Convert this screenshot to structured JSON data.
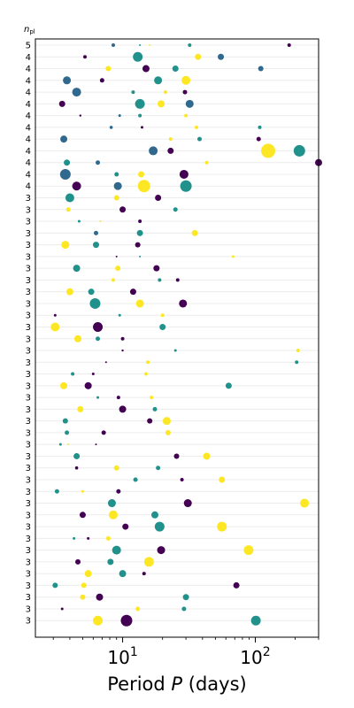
{
  "chart_data": {
    "type": "scatter",
    "title": "",
    "xlabel_prefix": "Period ",
    "xlabel_var": "P",
    "xlabel_suffix": " (days)",
    "ylabel_var": "n",
    "ylabel_sub": "pl",
    "x_scale": "log",
    "xlim": [
      2.2,
      300
    ],
    "x_ticks": [
      {
        "value": 10,
        "base": "10",
        "exp": "1"
      },
      {
        "value": 100,
        "base": "10",
        "exp": "2"
      }
    ],
    "grid": "horizontal rows",
    "colors": {
      "purple": "#440154",
      "blue": "#31688e",
      "teal": "#21918c",
      "yellow": "#fde725"
    },
    "rows": [
      {
        "n_pl": 5,
        "planets": [
          {
            "P": 8.5,
            "r": 2,
            "c": "blue"
          },
          {
            "P": 13.5,
            "r": 1,
            "c": "teal"
          },
          {
            "P": 16,
            "r": 1,
            "c": "yellow"
          },
          {
            "P": 32,
            "r": 2,
            "c": "teal"
          },
          {
            "P": 180,
            "r": 2,
            "c": "purple"
          }
        ]
      },
      {
        "n_pl": 4,
        "planets": [
          {
            "P": 5.2,
            "r": 2,
            "c": "purple"
          },
          {
            "P": 13,
            "r": 5.5,
            "c": "teal"
          },
          {
            "P": 37,
            "r": 3.5,
            "c": "yellow"
          },
          {
            "P": 55,
            "r": 3.5,
            "c": "blue"
          }
        ]
      },
      {
        "n_pl": 4,
        "planets": [
          {
            "P": 7.8,
            "r": 3,
            "c": "yellow"
          },
          {
            "P": 15,
            "r": 4,
            "c": "purple"
          },
          {
            "P": 25,
            "r": 3.5,
            "c": "teal"
          },
          {
            "P": 110,
            "r": 3,
            "c": "blue"
          }
        ]
      },
      {
        "n_pl": 4,
        "planets": [
          {
            "P": 3.8,
            "r": 4.5,
            "c": "blue"
          },
          {
            "P": 7,
            "r": 2.5,
            "c": "purple"
          },
          {
            "P": 18.5,
            "r": 4.5,
            "c": "teal"
          },
          {
            "P": 30,
            "r": 5,
            "c": "yellow"
          }
        ]
      },
      {
        "n_pl": 4,
        "planets": [
          {
            "P": 4.5,
            "r": 5,
            "c": "blue"
          },
          {
            "P": 12,
            "r": 2,
            "c": "teal"
          },
          {
            "P": 21,
            "r": 2,
            "c": "yellow"
          },
          {
            "P": 29.5,
            "r": 2.5,
            "c": "purple"
          }
        ]
      },
      {
        "n_pl": 4,
        "planets": [
          {
            "P": 3.5,
            "r": 3.5,
            "c": "purple"
          },
          {
            "P": 13.5,
            "r": 5.5,
            "c": "teal"
          },
          {
            "P": 19.5,
            "r": 4,
            "c": "yellow"
          },
          {
            "P": 32,
            "r": 4.5,
            "c": "blue"
          }
        ]
      },
      {
        "n_pl": 4,
        "planets": [
          {
            "P": 4.8,
            "r": 1.2,
            "c": "purple"
          },
          {
            "P": 9.5,
            "r": 1.5,
            "c": "blue"
          },
          {
            "P": 13.5,
            "r": 2,
            "c": "teal"
          },
          {
            "P": 30,
            "r": 2,
            "c": "yellow"
          }
        ]
      },
      {
        "n_pl": 4,
        "planets": [
          {
            "P": 8.2,
            "r": 1.8,
            "c": "blue"
          },
          {
            "P": 14,
            "r": 1.5,
            "c": "purple"
          },
          {
            "P": 36,
            "r": 2,
            "c": "yellow"
          },
          {
            "P": 108,
            "r": 2,
            "c": "teal"
          }
        ]
      },
      {
        "n_pl": 4,
        "planets": [
          {
            "P": 3.6,
            "r": 4,
            "c": "blue"
          },
          {
            "P": 23,
            "r": 2,
            "c": "yellow"
          },
          {
            "P": 38,
            "r": 2.5,
            "c": "teal"
          },
          {
            "P": 106,
            "r": 2.5,
            "c": "purple"
          }
        ]
      },
      {
        "n_pl": 4,
        "planets": [
          {
            "P": 17,
            "r": 5,
            "c": "blue"
          },
          {
            "P": 23,
            "r": 3.5,
            "c": "purple"
          },
          {
            "P": 125,
            "r": 8,
            "c": "yellow"
          },
          {
            "P": 215,
            "r": 6.5,
            "c": "teal"
          }
        ]
      },
      {
        "n_pl": 4,
        "planets": [
          {
            "P": 3.8,
            "r": 3.5,
            "c": "teal"
          },
          {
            "P": 6.5,
            "r": 2.5,
            "c": "blue"
          },
          {
            "P": 43,
            "r": 2,
            "c": "yellow"
          },
          {
            "P": 300,
            "r": 4,
            "c": "purple"
          }
        ]
      },
      {
        "n_pl": 4,
        "planets": [
          {
            "P": 3.7,
            "r": 6,
            "c": "blue"
          },
          {
            "P": 9,
            "r": 2.5,
            "c": "teal"
          },
          {
            "P": 13.8,
            "r": 3.5,
            "c": "yellow"
          },
          {
            "P": 29,
            "r": 5,
            "c": "purple"
          }
        ]
      },
      {
        "n_pl": 4,
        "planets": [
          {
            "P": 4.5,
            "r": 5,
            "c": "purple"
          },
          {
            "P": 9.2,
            "r": 4.5,
            "c": "blue"
          },
          {
            "P": 14.5,
            "r": 7,
            "c": "yellow"
          },
          {
            "P": 30,
            "r": 6.5,
            "c": "teal"
          }
        ]
      },
      {
        "n_pl": 3,
        "planets": [
          {
            "P": 4,
            "r": 5,
            "c": "teal"
          },
          {
            "P": 9,
            "r": 3,
            "c": "yellow"
          },
          {
            "P": 18.5,
            "r": 3.5,
            "c": "purple"
          }
        ]
      },
      {
        "n_pl": 3,
        "planets": [
          {
            "P": 3.9,
            "r": 2.5,
            "c": "yellow"
          },
          {
            "P": 10,
            "r": 3.5,
            "c": "purple"
          },
          {
            "P": 25,
            "r": 2.5,
            "c": "teal"
          }
        ]
      },
      {
        "n_pl": 3,
        "planets": [
          {
            "P": 4.7,
            "r": 1.5,
            "c": "teal"
          },
          {
            "P": 6.8,
            "r": 1,
            "c": "yellow"
          },
          {
            "P": 13.5,
            "r": 2,
            "c": "purple"
          }
        ]
      },
      {
        "n_pl": 3,
        "planets": [
          {
            "P": 6.3,
            "r": 2.5,
            "c": "blue"
          },
          {
            "P": 13.5,
            "r": 3.5,
            "c": "teal"
          },
          {
            "P": 35,
            "r": 3.5,
            "c": "yellow"
          }
        ]
      },
      {
        "n_pl": 3,
        "planets": [
          {
            "P": 3.7,
            "r": 4.5,
            "c": "yellow"
          },
          {
            "P": 6.3,
            "r": 3.5,
            "c": "teal"
          },
          {
            "P": 13,
            "r": 3,
            "c": "purple"
          }
        ]
      },
      {
        "n_pl": 3,
        "planets": [
          {
            "P": 9,
            "r": 1,
            "c": "purple"
          },
          {
            "P": 13.5,
            "r": 1,
            "c": "teal"
          },
          {
            "P": 68,
            "r": 1.5,
            "c": "yellow"
          }
        ]
      },
      {
        "n_pl": 3,
        "planets": [
          {
            "P": 4.5,
            "r": 4,
            "c": "teal"
          },
          {
            "P": 9.2,
            "r": 3,
            "c": "yellow"
          },
          {
            "P": 18,
            "r": 3.5,
            "c": "purple"
          }
        ]
      },
      {
        "n_pl": 3,
        "planets": [
          {
            "P": 8.5,
            "r": 2,
            "c": "yellow"
          },
          {
            "P": 19,
            "r": 2,
            "c": "teal"
          },
          {
            "P": 26,
            "r": 2,
            "c": "purple"
          }
        ]
      },
      {
        "n_pl": 3,
        "planets": [
          {
            "P": 4,
            "r": 4,
            "c": "yellow"
          },
          {
            "P": 5.8,
            "r": 3.5,
            "c": "teal"
          },
          {
            "P": 12,
            "r": 3.5,
            "c": "purple"
          }
        ]
      },
      {
        "n_pl": 3,
        "planets": [
          {
            "P": 6.2,
            "r": 6,
            "c": "teal"
          },
          {
            "P": 13.5,
            "r": 4.5,
            "c": "yellow"
          },
          {
            "P": 28.5,
            "r": 4.5,
            "c": "purple"
          }
        ]
      },
      {
        "n_pl": 3,
        "planets": [
          {
            "P": 3.1,
            "r": 1.5,
            "c": "purple"
          },
          {
            "P": 9.5,
            "r": 1.5,
            "c": "teal"
          },
          {
            "P": 20,
            "r": 2,
            "c": "yellow"
          }
        ]
      },
      {
        "n_pl": 3,
        "planets": [
          {
            "P": 3.1,
            "r": 5,
            "c": "yellow"
          },
          {
            "P": 6.5,
            "r": 5.5,
            "c": "purple"
          },
          {
            "P": 20,
            "r": 3.5,
            "c": "teal"
          }
        ]
      },
      {
        "n_pl": 3,
        "planets": [
          {
            "P": 4.6,
            "r": 4,
            "c": "yellow"
          },
          {
            "P": 6.5,
            "r": 2.5,
            "c": "teal"
          },
          {
            "P": 10,
            "r": 2,
            "c": "purple"
          }
        ]
      },
      {
        "n_pl": 3,
        "planets": [
          {
            "P": 10,
            "r": 1.2,
            "c": "purple"
          },
          {
            "P": 25,
            "r": 1.5,
            "c": "teal"
          },
          {
            "P": 210,
            "r": 2,
            "c": "yellow"
          }
        ]
      },
      {
        "n_pl": 3,
        "planets": [
          {
            "P": 7.5,
            "r": 1,
            "c": "purple"
          },
          {
            "P": 15.5,
            "r": 2,
            "c": "yellow"
          },
          {
            "P": 205,
            "r": 2,
            "c": "teal"
          }
        ]
      },
      {
        "n_pl": 3,
        "planets": [
          {
            "P": 4.2,
            "r": 2,
            "c": "teal"
          },
          {
            "P": 6,
            "r": 1.5,
            "c": "purple"
          },
          {
            "P": 15,
            "r": 2,
            "c": "yellow"
          }
        ]
      },
      {
        "n_pl": 3,
        "planets": [
          {
            "P": 3.6,
            "r": 4,
            "c": "yellow"
          },
          {
            "P": 5.5,
            "r": 4,
            "c": "purple"
          },
          {
            "P": 63,
            "r": 3.5,
            "c": "teal"
          }
        ]
      },
      {
        "n_pl": 3,
        "planets": [
          {
            "P": 6.5,
            "r": 1.5,
            "c": "teal"
          },
          {
            "P": 9.3,
            "r": 2,
            "c": "purple"
          },
          {
            "P": 16.5,
            "r": 2,
            "c": "yellow"
          }
        ]
      },
      {
        "n_pl": 3,
        "planets": [
          {
            "P": 4.8,
            "r": 3.5,
            "c": "yellow"
          },
          {
            "P": 10,
            "r": 4,
            "c": "purple"
          },
          {
            "P": 17.5,
            "r": 2.5,
            "c": "teal"
          }
        ]
      },
      {
        "n_pl": 3,
        "planets": [
          {
            "P": 3.7,
            "r": 3,
            "c": "teal"
          },
          {
            "P": 16,
            "r": 3,
            "c": "purple"
          },
          {
            "P": 21.5,
            "r": 4.5,
            "c": "yellow"
          }
        ]
      },
      {
        "n_pl": 3,
        "planets": [
          {
            "P": 3.8,
            "r": 2.5,
            "c": "teal"
          },
          {
            "P": 7.2,
            "r": 2.5,
            "c": "purple"
          },
          {
            "P": 22,
            "r": 3,
            "c": "yellow"
          }
        ]
      },
      {
        "n_pl": 3,
        "planets": [
          {
            "P": 3.4,
            "r": 1.5,
            "c": "teal"
          },
          {
            "P": 3.9,
            "r": 1,
            "c": "yellow"
          },
          {
            "P": 6.3,
            "r": 1,
            "c": "purple"
          }
        ]
      },
      {
        "n_pl": 3,
        "planets": [
          {
            "P": 4.5,
            "r": 3.5,
            "c": "teal"
          },
          {
            "P": 25.5,
            "r": 3,
            "c": "purple"
          },
          {
            "P": 43,
            "r": 4,
            "c": "yellow"
          }
        ]
      },
      {
        "n_pl": 3,
        "planets": [
          {
            "P": 4.5,
            "r": 1.8,
            "c": "purple"
          },
          {
            "P": 9,
            "r": 3,
            "c": "yellow"
          },
          {
            "P": 18.5,
            "r": 2.5,
            "c": "teal"
          }
        ]
      },
      {
        "n_pl": 3,
        "planets": [
          {
            "P": 12.5,
            "r": 2.5,
            "c": "teal"
          },
          {
            "P": 28,
            "r": 2,
            "c": "purple"
          },
          {
            "P": 56,
            "r": 3.5,
            "c": "yellow"
          }
        ]
      },
      {
        "n_pl": 3,
        "planets": [
          {
            "P": 3.2,
            "r": 2.5,
            "c": "teal"
          },
          {
            "P": 5,
            "r": 1.5,
            "c": "yellow"
          },
          {
            "P": 9.3,
            "r": 2.5,
            "c": "purple"
          }
        ]
      },
      {
        "n_pl": 3,
        "planets": [
          {
            "P": 8.3,
            "r": 4.5,
            "c": "teal"
          },
          {
            "P": 31,
            "r": 4.5,
            "c": "purple"
          },
          {
            "P": 235,
            "r": 5,
            "c": "yellow"
          }
        ]
      },
      {
        "n_pl": 3,
        "planets": [
          {
            "P": 5,
            "r": 3.5,
            "c": "purple"
          },
          {
            "P": 8.5,
            "r": 5,
            "c": "yellow"
          },
          {
            "P": 17.5,
            "r": 4,
            "c": "teal"
          }
        ]
      },
      {
        "n_pl": 3,
        "planets": [
          {
            "P": 10.5,
            "r": 3.5,
            "c": "purple"
          },
          {
            "P": 19,
            "r": 5.5,
            "c": "teal"
          },
          {
            "P": 56,
            "r": 5.5,
            "c": "yellow"
          }
        ]
      },
      {
        "n_pl": 3,
        "planets": [
          {
            "P": 4.3,
            "r": 1.5,
            "c": "teal"
          },
          {
            "P": 5.5,
            "r": 1.5,
            "c": "purple"
          },
          {
            "P": 7.8,
            "r": 2.5,
            "c": "yellow"
          }
        ]
      },
      {
        "n_pl": 3,
        "planets": [
          {
            "P": 9,
            "r": 5,
            "c": "teal"
          },
          {
            "P": 19.5,
            "r": 4.5,
            "c": "purple"
          },
          {
            "P": 89,
            "r": 5.5,
            "c": "yellow"
          }
        ]
      },
      {
        "n_pl": 3,
        "planets": [
          {
            "P": 4.6,
            "r": 3,
            "c": "purple"
          },
          {
            "P": 8.1,
            "r": 3.5,
            "c": "teal"
          },
          {
            "P": 15.8,
            "r": 5.5,
            "c": "yellow"
          }
        ]
      },
      {
        "n_pl": 3,
        "planets": [
          {
            "P": 5.5,
            "r": 4,
            "c": "yellow"
          },
          {
            "P": 10,
            "r": 4,
            "c": "teal"
          },
          {
            "P": 14.5,
            "r": 2,
            "c": "purple"
          }
        ]
      },
      {
        "n_pl": 3,
        "planets": [
          {
            "P": 3.1,
            "r": 3,
            "c": "teal"
          },
          {
            "P": 5.1,
            "r": 3,
            "c": "yellow"
          },
          {
            "P": 72,
            "r": 3.5,
            "c": "purple"
          }
        ]
      },
      {
        "n_pl": 3,
        "planets": [
          {
            "P": 5,
            "r": 3,
            "c": "yellow"
          },
          {
            "P": 6.7,
            "r": 4,
            "c": "purple"
          },
          {
            "P": 30,
            "r": 3.5,
            "c": "teal"
          }
        ]
      },
      {
        "n_pl": 3,
        "planets": [
          {
            "P": 3.5,
            "r": 1.5,
            "c": "purple"
          },
          {
            "P": 13,
            "r": 2.5,
            "c": "yellow"
          },
          {
            "P": 29,
            "r": 2.5,
            "c": "teal"
          }
        ]
      },
      {
        "n_pl": 3,
        "planets": [
          {
            "P": 6.5,
            "r": 5.5,
            "c": "yellow"
          },
          {
            "P": 10.7,
            "r": 6.5,
            "c": "purple"
          },
          {
            "P": 101,
            "r": 5.5,
            "c": "teal"
          }
        ]
      }
    ]
  }
}
